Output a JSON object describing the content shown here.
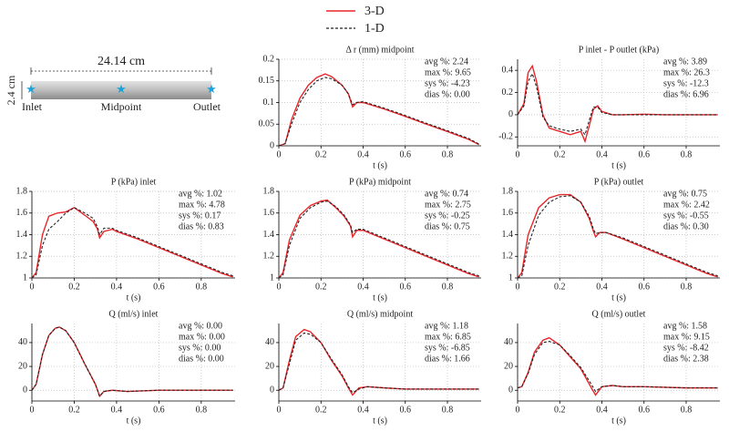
{
  "diagram": {
    "length": "24.14 cm",
    "diameter": "2.4 cm",
    "labels": [
      "Inlet",
      "Midpoint",
      "Outlet"
    ]
  },
  "chart_data": [
    {
      "type": "line",
      "title": "Δ r (mm) midpoint",
      "xlabel": "t (s)",
      "grid": true,
      "xlim": [
        0,
        0.96
      ],
      "xticks": [
        0,
        0.2,
        0.4,
        0.6,
        0.8
      ],
      "ylim": [
        0,
        0.2
      ],
      "yticks": [
        0,
        0.05,
        0.1,
        0.15,
        0.2
      ],
      "annotations": [
        "avg %: 2.24",
        "max %: 9.65",
        "sys %: -4.23",
        "dias %: 0.00"
      ],
      "x": [
        0,
        0.03,
        0.06,
        0.1,
        0.14,
        0.18,
        0.22,
        0.25,
        0.3,
        0.33,
        0.35,
        0.37,
        0.4,
        0.5,
        0.6,
        0.7,
        0.8,
        0.9,
        0.95
      ],
      "series": [
        {
          "name": "3-D",
          "color": "#e8272b",
          "dash": false,
          "values": [
            0,
            0.005,
            0.06,
            0.11,
            0.14,
            0.158,
            0.166,
            0.16,
            0.14,
            0.12,
            0.09,
            0.1,
            0.1,
            0.085,
            0.068,
            0.05,
            0.033,
            0.015,
            0.003
          ]
        },
        {
          "name": "1-D",
          "color": "#222222",
          "dash": true,
          "values": [
            0,
            0.005,
            0.05,
            0.1,
            0.13,
            0.15,
            0.158,
            0.155,
            0.14,
            0.12,
            0.095,
            0.1,
            0.102,
            0.087,
            0.07,
            0.052,
            0.035,
            0.017,
            0.004
          ]
        }
      ]
    },
    {
      "type": "line",
      "title": "P inlet - P outlet (kPa)",
      "xlabel": "t (s)",
      "grid": true,
      "xlim": [
        0,
        0.96
      ],
      "xticks": [
        0,
        0.2,
        0.4,
        0.6,
        0.8
      ],
      "ylim": [
        -0.28,
        0.5
      ],
      "yticks": [
        -0.2,
        0,
        0.2,
        0.4
      ],
      "annotations": [
        "avg %: 3.89",
        "max %: 26.3",
        "sys %: -12.3",
        "dias %: 6.96"
      ],
      "x": [
        0,
        0.03,
        0.05,
        0.07,
        0.09,
        0.12,
        0.15,
        0.2,
        0.25,
        0.3,
        0.32,
        0.34,
        0.36,
        0.38,
        0.4,
        0.45,
        0.5,
        0.6,
        0.7,
        0.8,
        0.9,
        0.95
      ],
      "series": [
        {
          "name": "3-D",
          "color": "#e8272b",
          "dash": false,
          "values": [
            0,
            0.1,
            0.38,
            0.44,
            0.3,
            0.0,
            -0.12,
            -0.15,
            -0.18,
            -0.15,
            -0.24,
            -0.1,
            0.05,
            0.08,
            0.03,
            0,
            0,
            0.005,
            0,
            0,
            0,
            0
          ]
        },
        {
          "name": "1-D",
          "color": "#222222",
          "dash": true,
          "values": [
            0,
            0.08,
            0.3,
            0.37,
            0.25,
            -0.02,
            -0.1,
            -0.13,
            -0.15,
            -0.13,
            -0.18,
            -0.05,
            0.07,
            0.07,
            0.02,
            0,
            0,
            0,
            0,
            0,
            0,
            0
          ]
        }
      ]
    },
    {
      "type": "line",
      "title": "P (kPa) inlet",
      "xlabel": "t (s)",
      "grid": true,
      "xlim": [
        0,
        0.96
      ],
      "xticks": [
        0,
        0.2,
        0.4,
        0.6,
        0.8
      ],
      "ylim": [
        1,
        1.8
      ],
      "yticks": [
        1,
        1.2,
        1.4,
        1.6,
        1.8
      ],
      "annotations": [
        "avg %: 1.02",
        "max %: 4.78",
        "sys %: 0.17",
        "dias %: 0.83"
      ],
      "x": [
        0,
        0.02,
        0.05,
        0.08,
        0.12,
        0.16,
        0.2,
        0.25,
        0.29,
        0.31,
        0.32,
        0.34,
        0.38,
        0.4,
        0.5,
        0.6,
        0.7,
        0.8,
        0.9,
        0.95
      ],
      "series": [
        {
          "name": "3-D",
          "color": "#e8272b",
          "dash": false,
          "values": [
            1,
            1.05,
            1.4,
            1.57,
            1.6,
            1.61,
            1.65,
            1.58,
            1.52,
            1.45,
            1.37,
            1.43,
            1.45,
            1.43,
            1.36,
            1.28,
            1.2,
            1.12,
            1.04,
            1.01
          ]
        },
        {
          "name": "1-D",
          "color": "#222222",
          "dash": true,
          "values": [
            1,
            1.03,
            1.3,
            1.45,
            1.52,
            1.6,
            1.65,
            1.6,
            1.55,
            1.47,
            1.4,
            1.46,
            1.46,
            1.44,
            1.37,
            1.29,
            1.21,
            1.13,
            1.05,
            1.02
          ]
        }
      ]
    },
    {
      "type": "line",
      "title": "P (kPa) midpoint",
      "xlabel": "t (s)",
      "grid": true,
      "xlim": [
        0,
        0.96
      ],
      "xticks": [
        0,
        0.2,
        0.4,
        0.6,
        0.8
      ],
      "ylim": [
        1,
        1.8
      ],
      "yticks": [
        1,
        1.2,
        1.4,
        1.6,
        1.8
      ],
      "annotations": [
        "avg %: 0.74",
        "max %: 2.75",
        "sys %: -0.25",
        "dias %: 0.75"
      ],
      "x": [
        0,
        0.02,
        0.05,
        0.1,
        0.15,
        0.2,
        0.23,
        0.27,
        0.31,
        0.34,
        0.35,
        0.37,
        0.4,
        0.5,
        0.6,
        0.7,
        0.8,
        0.9,
        0.95
      ],
      "series": [
        {
          "name": "3-D",
          "color": "#e8272b",
          "dash": false,
          "values": [
            1,
            1.05,
            1.35,
            1.58,
            1.67,
            1.71,
            1.72,
            1.65,
            1.57,
            1.48,
            1.38,
            1.44,
            1.44,
            1.36,
            1.28,
            1.2,
            1.12,
            1.04,
            1.01
          ]
        },
        {
          "name": "1-D",
          "color": "#222222",
          "dash": true,
          "values": [
            1,
            1.03,
            1.3,
            1.55,
            1.65,
            1.7,
            1.71,
            1.66,
            1.58,
            1.49,
            1.42,
            1.45,
            1.45,
            1.37,
            1.29,
            1.21,
            1.13,
            1.05,
            1.02
          ]
        }
      ]
    },
    {
      "type": "line",
      "title": "P (kPa) outlet",
      "xlabel": "t (s)",
      "grid": true,
      "xlim": [
        0,
        0.96
      ],
      "xticks": [
        0,
        0.2,
        0.4,
        0.6,
        0.8
      ],
      "ylim": [
        1,
        1.8
      ],
      "yticks": [
        1,
        1.2,
        1.4,
        1.6,
        1.8
      ],
      "annotations": [
        "avg %: 0.75",
        "max %: 2.42",
        "sys %: -0.55",
        "dias %: 0.30"
      ],
      "x": [
        0,
        0.02,
        0.05,
        0.1,
        0.15,
        0.2,
        0.25,
        0.3,
        0.34,
        0.36,
        0.37,
        0.39,
        0.42,
        0.5,
        0.6,
        0.7,
        0.8,
        0.9,
        0.95
      ],
      "series": [
        {
          "name": "3-D",
          "color": "#e8272b",
          "dash": false,
          "values": [
            1,
            1.05,
            1.4,
            1.65,
            1.74,
            1.77,
            1.77,
            1.7,
            1.55,
            1.43,
            1.38,
            1.42,
            1.42,
            1.36,
            1.28,
            1.2,
            1.12,
            1.04,
            1.01
          ]
        },
        {
          "name": "1-D",
          "color": "#222222",
          "dash": true,
          "values": [
            1,
            1.02,
            1.3,
            1.58,
            1.7,
            1.75,
            1.76,
            1.7,
            1.57,
            1.45,
            1.41,
            1.42,
            1.42,
            1.37,
            1.29,
            1.21,
            1.13,
            1.05,
            1.02
          ]
        }
      ]
    },
    {
      "type": "line",
      "title": "Q (ml/s) inlet",
      "xlabel": "t (s)",
      "grid": true,
      "xlim": [
        0,
        0.96
      ],
      "xticks": [
        0,
        0.2,
        0.4,
        0.6,
        0.8
      ],
      "ylim": [
        -9,
        56
      ],
      "yticks": [
        0,
        20,
        40
      ],
      "annotations": [
        "avg %: 0.00",
        "max %: 0.00",
        "sys %: 0.00",
        "dias %: 0.00"
      ],
      "x": [
        0,
        0.02,
        0.05,
        0.08,
        0.11,
        0.13,
        0.16,
        0.2,
        0.25,
        0.3,
        0.32,
        0.34,
        0.38,
        0.45,
        0.6,
        0.8,
        0.95
      ],
      "series": [
        {
          "name": "3-D",
          "color": "#e8272b",
          "dash": false,
          "values": [
            0,
            5,
            30,
            46,
            52,
            53,
            50,
            40,
            22,
            5,
            -5,
            -1,
            0,
            -1,
            0,
            0,
            0
          ]
        },
        {
          "name": "1-D",
          "color": "#222222",
          "dash": true,
          "values": [
            0,
            5,
            30,
            46,
            52,
            53,
            50,
            40,
            22,
            5,
            -5,
            -1,
            0,
            -1,
            0,
            0,
            0
          ]
        }
      ]
    },
    {
      "type": "line",
      "title": "Q (ml/s) midpoint",
      "xlabel": "t (s)",
      "grid": true,
      "xlim": [
        0,
        0.96
      ],
      "xticks": [
        0,
        0.2,
        0.4,
        0.6,
        0.8
      ],
      "ylim": [
        -9,
        56
      ],
      "yticks": [
        0,
        20,
        40
      ],
      "annotations": [
        "avg %: 1.18",
        "max %: 6.85",
        "sys %: -6.85",
        "dias %: 1.66"
      ],
      "x": [
        0,
        0.02,
        0.05,
        0.08,
        0.12,
        0.15,
        0.2,
        0.25,
        0.3,
        0.33,
        0.35,
        0.38,
        0.42,
        0.5,
        0.6,
        0.8,
        0.95
      ],
      "series": [
        {
          "name": "3-D",
          "color": "#e8272b",
          "dash": false,
          "values": [
            0,
            2,
            25,
            45,
            51,
            49,
            40,
            25,
            12,
            2,
            -4,
            2,
            3,
            2,
            1,
            1,
            1
          ]
        },
        {
          "name": "1-D",
          "color": "#222222",
          "dash": true,
          "values": [
            0,
            2,
            22,
            42,
            48,
            47,
            40,
            26,
            13,
            3,
            -2,
            1,
            3,
            2,
            1,
            1,
            1
          ]
        }
      ]
    },
    {
      "type": "line",
      "title": "Q (ml/s) outlet",
      "xlabel": "t (s)",
      "grid": true,
      "xlim": [
        0,
        0.96
      ],
      "xticks": [
        0,
        0.2,
        0.4,
        0.6,
        0.8
      ],
      "ylim": [
        -9,
        56
      ],
      "yticks": [
        0,
        20,
        40
      ],
      "annotations": [
        "avg %: 1.58",
        "max %: 9.15",
        "sys %: -8.42",
        "dias %: 2.38"
      ],
      "x": [
        0,
        0.02,
        0.05,
        0.08,
        0.12,
        0.15,
        0.2,
        0.25,
        0.3,
        0.35,
        0.37,
        0.4,
        0.45,
        0.5,
        0.6,
        0.8,
        0.95
      ],
      "series": [
        {
          "name": "3-D",
          "color": "#e8272b",
          "dash": false,
          "values": [
            2,
            3,
            15,
            32,
            42,
            44,
            38,
            28,
            18,
            2,
            -4,
            3,
            4,
            3,
            3,
            2,
            2
          ]
        },
        {
          "name": "1-D",
          "color": "#222222",
          "dash": true,
          "values": [
            2,
            3,
            14,
            30,
            40,
            41,
            38,
            29,
            19,
            5,
            -1,
            3,
            4,
            3,
            3,
            2,
            2
          ]
        }
      ]
    }
  ]
}
